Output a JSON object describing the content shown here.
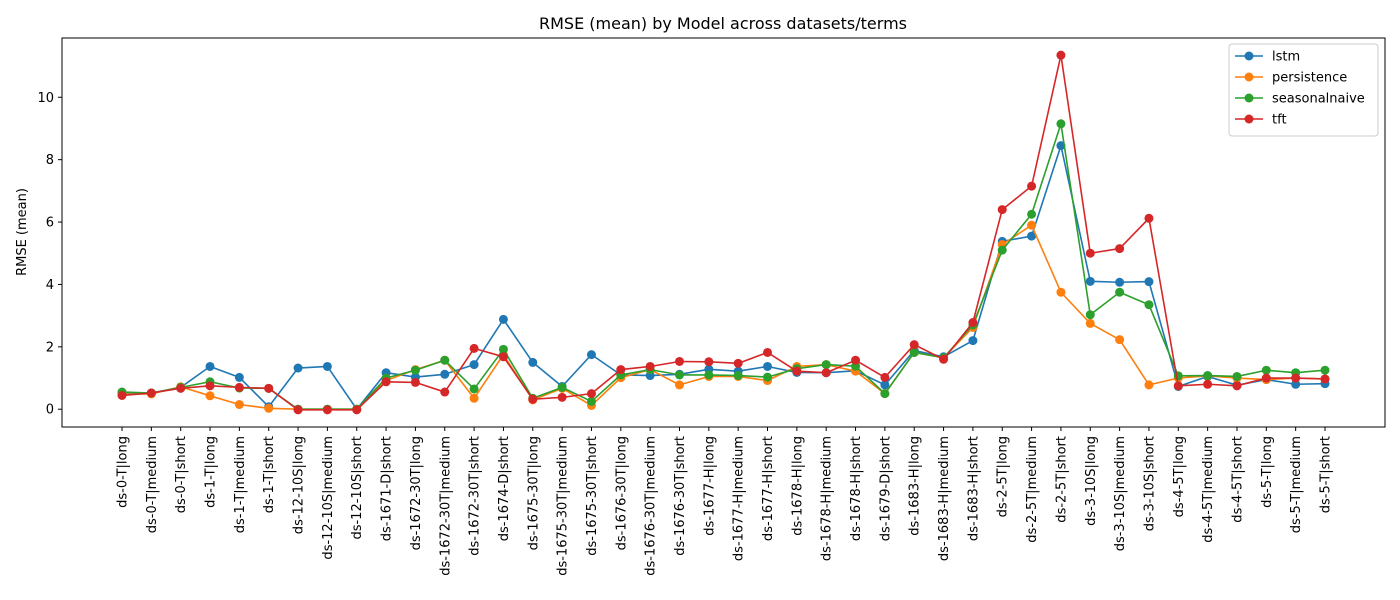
{
  "chart_data": {
    "type": "line",
    "title": "RMSE (mean) by Model across datasets/terms",
    "xlabel": "",
    "ylabel": "RMSE (mean)",
    "ylim": [
      -0.57,
      11.9
    ],
    "yticks": [
      0,
      2,
      4,
      6,
      8,
      10
    ],
    "grid": false,
    "legend_position": "top-right",
    "categories": [
      "ds-0-T|long",
      "ds-0-T|medium",
      "ds-0-T|short",
      "ds-1-T|long",
      "ds-1-T|medium",
      "ds-1-T|short",
      "ds-12-10S|long",
      "ds-12-10S|medium",
      "ds-12-10S|short",
      "ds-1671-D|short",
      "ds-1672-30T|long",
      "ds-1672-30T|medium",
      "ds-1672-30T|short",
      "ds-1674-D|short",
      "ds-1675-30T|long",
      "ds-1675-30T|medium",
      "ds-1675-30T|short",
      "ds-1676-30T|long",
      "ds-1676-30T|medium",
      "ds-1676-30T|short",
      "ds-1677-H|long",
      "ds-1677-H|medium",
      "ds-1677-H|short",
      "ds-1678-H|long",
      "ds-1678-H|medium",
      "ds-1678-H|short",
      "ds-1679-D|short",
      "ds-1683-H|long",
      "ds-1683-H|medium",
      "ds-1683-H|short",
      "ds-2-5T|long",
      "ds-2-5T|medium",
      "ds-2-5T|short",
      "ds-3-10S|long",
      "ds-3-10S|medium",
      "ds-3-10S|short",
      "ds-4-5T|long",
      "ds-4-5T|medium",
      "ds-4-5T|short",
      "ds-5-T|long",
      "ds-5-T|medium",
      "ds-5-T|short"
    ],
    "series": [
      {
        "name": "lstm",
        "color": "#1f77b4",
        "values": [
          0.5,
          0.52,
          0.7,
          1.37,
          1.02,
          0.08,
          1.32,
          1.37,
          0.0,
          1.17,
          1.03,
          1.12,
          1.43,
          2.88,
          1.5,
          0.73,
          1.75,
          1.1,
          1.08,
          1.12,
          1.28,
          1.22,
          1.37,
          1.18,
          1.17,
          1.23,
          0.78,
          1.88,
          1.68,
          2.2,
          5.38,
          5.55,
          8.45,
          4.1,
          4.07,
          4.09,
          0.73,
          1.05,
          0.77,
          0.95,
          0.8,
          0.82
        ]
      },
      {
        "name": "persistence",
        "color": "#ff7f0e",
        "values": [
          0.48,
          0.49,
          0.72,
          0.43,
          0.15,
          0.03,
          0.0,
          0.0,
          0.0,
          0.92,
          1.27,
          1.57,
          0.35,
          1.75,
          0.3,
          0.67,
          0.12,
          1.01,
          1.27,
          0.78,
          1.05,
          1.05,
          0.92,
          1.37,
          1.43,
          1.22,
          0.5,
          1.82,
          1.65,
          2.62,
          5.28,
          5.9,
          3.75,
          2.75,
          2.23,
          0.78,
          1.0,
          1.07,
          1.0,
          0.95,
          1.0,
          0.97
        ]
      },
      {
        "name": "seasonalnaive",
        "color": "#2ca02c",
        "values": [
          0.55,
          0.52,
          0.7,
          0.88,
          0.68,
          0.67,
          0.0,
          0.0,
          0.0,
          1.0,
          1.25,
          1.57,
          0.65,
          1.92,
          0.35,
          0.7,
          0.25,
          1.1,
          1.27,
          1.1,
          1.1,
          1.08,
          1.03,
          1.3,
          1.43,
          1.38,
          0.5,
          1.82,
          1.65,
          2.7,
          5.1,
          6.25,
          9.15,
          3.03,
          3.75,
          3.35,
          1.07,
          1.08,
          1.05,
          1.25,
          1.17,
          1.25
        ]
      },
      {
        "name": "tft",
        "color": "#d62728",
        "values": [
          0.44,
          0.52,
          0.67,
          0.75,
          0.7,
          0.67,
          -0.02,
          -0.02,
          -0.02,
          0.88,
          0.86,
          0.55,
          1.95,
          1.68,
          0.32,
          0.38,
          0.5,
          1.27,
          1.37,
          1.53,
          1.52,
          1.47,
          1.82,
          1.22,
          1.17,
          1.57,
          1.02,
          2.07,
          1.6,
          2.78,
          6.4,
          7.15,
          11.35,
          5.0,
          5.15,
          6.12,
          0.75,
          0.8,
          0.75,
          1.0,
          1.0,
          0.97
        ]
      }
    ]
  }
}
